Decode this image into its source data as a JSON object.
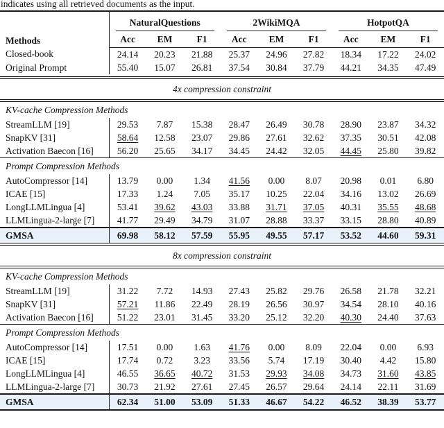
{
  "caption": "indicates using all retrieved documents as the input.",
  "colors": {
    "highlight_row_bg": "#e9f1fb",
    "rule_color": "#1a1a1a",
    "text_color": "#141414"
  },
  "table": {
    "methods_header": "Methods",
    "groups": [
      {
        "label": "NaturalQuestions"
      },
      {
        "label": "2WikiMQA"
      },
      {
        "label": "HotpotQA"
      }
    ],
    "subheaders": [
      "Acc",
      "EM",
      "F1"
    ],
    "baseline_rows": [
      {
        "method": "Closed-book",
        "values": [
          "24.14",
          "20.23",
          "21.88",
          "25.37",
          "24.96",
          "27.82",
          "18.34",
          "17.22",
          "24.02"
        ],
        "underline": []
      },
      {
        "method": "Original Prompt",
        "values": [
          "55.40",
          "15.07",
          "26.81",
          "37.54",
          "30.84",
          "37.79",
          "44.21",
          "34.35",
          "47.49"
        ],
        "underline": []
      }
    ],
    "sections": [
      {
        "title": "4x compression constraint",
        "subsections": [
          {
            "label": "KV-cache Compression Methods",
            "rows": [
              {
                "method": "StreamLLM [19]",
                "values": [
                  "29.53",
                  "7.87",
                  "15.38",
                  "28.47",
                  "26.49",
                  "30.78",
                  "28.90",
                  "23.87",
                  "34.32"
                ],
                "underline": []
              },
              {
                "method": "SnapKV [31]",
                "values": [
                  "58.64",
                  "12.58",
                  "23.07",
                  "29.86",
                  "27.61",
                  "32.62",
                  "37.35",
                  "30.51",
                  "42.08"
                ],
                "underline": [
                  0
                ]
              },
              {
                "method": "Activation Baecon [16]",
                "values": [
                  "56.20",
                  "25.65",
                  "34.17",
                  "34.45",
                  "24.42",
                  "32.05",
                  "44.45",
                  "25.80",
                  "39.82"
                ],
                "underline": [
                  6
                ]
              }
            ]
          },
          {
            "label": "Prompt Compression Methods",
            "rows": [
              {
                "method": "AutoCompressor [14]",
                "values": [
                  "13.79",
                  "0.00",
                  "1.34",
                  "41.56",
                  "0.00",
                  "8.07",
                  "20.98",
                  "0.01",
                  "6.80"
                ],
                "underline": [
                  3
                ]
              },
              {
                "method": "ICAE [15]",
                "values": [
                  "17.33",
                  "1.24",
                  "7.05",
                  "35.17",
                  "10.25",
                  "22.04",
                  "34.16",
                  "13.02",
                  "26.69"
                ],
                "underline": []
              },
              {
                "method": "LongLLMLingua [4]",
                "values": [
                  "53.41",
                  "39.62",
                  "43.03",
                  "33.88",
                  "31.71",
                  "37.05",
                  "40.31",
                  "35.55",
                  "48.68"
                ],
                "underline": [
                  1,
                  2,
                  4,
                  5,
                  7,
                  8
                ]
              },
              {
                "method": "LLMLingua-2-large [7]",
                "values": [
                  "41.77",
                  "29.49",
                  "34.79",
                  "31.07",
                  "28.88",
                  "33.37",
                  "33.15",
                  "28.80",
                  "40.89"
                ],
                "underline": []
              }
            ]
          }
        ],
        "highlight_row": {
          "method": "GMSA",
          "values": [
            "69.98",
            "58.12",
            "57.59",
            "55.95",
            "49.55",
            "57.17",
            "53.52",
            "44.60",
            "59.31"
          ],
          "underline": []
        }
      },
      {
        "title": "8x compression constraint",
        "subsections": [
          {
            "label": "KV-cache Compression Methods",
            "rows": [
              {
                "method": "StreamLLM [19]",
                "values": [
                  "31.22",
                  "7.72",
                  "14.93",
                  "27.43",
                  "25.82",
                  "29.76",
                  "26.58",
                  "21.78",
                  "32.21"
                ],
                "underline": []
              },
              {
                "method": "SnapKV [31]",
                "values": [
                  "57.21",
                  "11.86",
                  "22.49",
                  "28.19",
                  "26.56",
                  "30.97",
                  "34.54",
                  "28.10",
                  "40.16"
                ],
                "underline": [
                  0
                ]
              },
              {
                "method": "Activation Baecon [16]",
                "values": [
                  "51.22",
                  "23.01",
                  "31.45",
                  "33.20",
                  "25.12",
                  "32.20",
                  "40.30",
                  "24.40",
                  "37.63"
                ],
                "underline": [
                  6
                ]
              }
            ]
          },
          {
            "label": "Prompt Compression Methods",
            "rows": [
              {
                "method": "AutoCompressor [14]",
                "values": [
                  "17.51",
                  "0.00",
                  "1.63",
                  "41.76",
                  "0.00",
                  "8.09",
                  "22.04",
                  "0.00",
                  "6.93"
                ],
                "underline": [
                  3
                ]
              },
              {
                "method": "ICAE [15]",
                "values": [
                  "17.74",
                  "0.72",
                  "3.23",
                  "33.56",
                  "5.74",
                  "17.19",
                  "30.40",
                  "4.42",
                  "15.80"
                ],
                "underline": []
              },
              {
                "method": "LongLLMLingua [4]",
                "values": [
                  "46.55",
                  "36.65",
                  "40.72",
                  "31.53",
                  "29.93",
                  "34.08",
                  "34.73",
                  "31.60",
                  "43.85"
                ],
                "underline": [
                  1,
                  2,
                  4,
                  5,
                  7,
                  8
                ]
              },
              {
                "method": "LLMLingua-2-large [7]",
                "values": [
                  "30.73",
                  "21.92",
                  "27.61",
                  "27.45",
                  "26.57",
                  "29.64",
                  "24.14",
                  "22.11",
                  "31.69"
                ],
                "underline": []
              }
            ]
          }
        ],
        "highlight_row": {
          "method": "GMSA",
          "values": [
            "62.34",
            "51.00",
            "53.09",
            "51.33",
            "46.67",
            "54.22",
            "46.52",
            "38.39",
            "53.77"
          ],
          "underline": []
        }
      }
    ]
  }
}
